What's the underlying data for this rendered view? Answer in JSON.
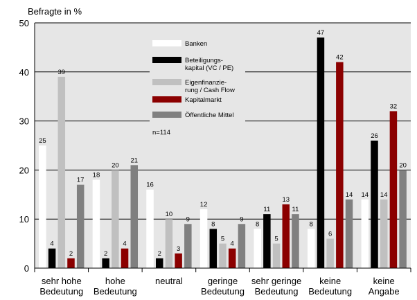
{
  "chart_data": {
    "type": "bar",
    "ylabel": "Befragte in %",
    "ylim": [
      0,
      50
    ],
    "yticks": [
      0,
      10,
      20,
      30,
      40,
      50
    ],
    "grid": true,
    "legend_position": "top-center",
    "note": "n=114",
    "categories": [
      [
        "sehr hohe",
        "Bedeutung"
      ],
      [
        "hohe",
        "Bedeutung"
      ],
      [
        "neutral"
      ],
      [
        "geringe",
        "Bedeutung"
      ],
      [
        "sehr geringe",
        "Bedeutung"
      ],
      [
        "keine",
        "Bedeutung"
      ],
      [
        "keine",
        "Angabe"
      ]
    ],
    "series": [
      {
        "name": [
          "Banken"
        ],
        "color": "#ffffff",
        "values": [
          25,
          18,
          16,
          12,
          8,
          8,
          14
        ]
      },
      {
        "name": [
          "Beteiligungs-",
          "kapital (VC / PE)"
        ],
        "color": "#000000",
        "values": [
          4,
          2,
          2,
          8,
          11,
          47,
          26
        ]
      },
      {
        "name": [
          "Eigenfinanzie-",
          "rung / Cash Flow"
        ],
        "color": "#c0c0c0",
        "values": [
          39,
          20,
          10,
          5,
          5,
          6,
          14
        ]
      },
      {
        "name": [
          "Kapitalmarkt"
        ],
        "color": "#8b0000",
        "values": [
          2,
          4,
          3,
          4,
          13,
          42,
          32
        ]
      },
      {
        "name": [
          "Öffentliche Mittel"
        ],
        "color": "#808080",
        "values": [
          17,
          21,
          9,
          9,
          11,
          14,
          20
        ]
      }
    ]
  }
}
